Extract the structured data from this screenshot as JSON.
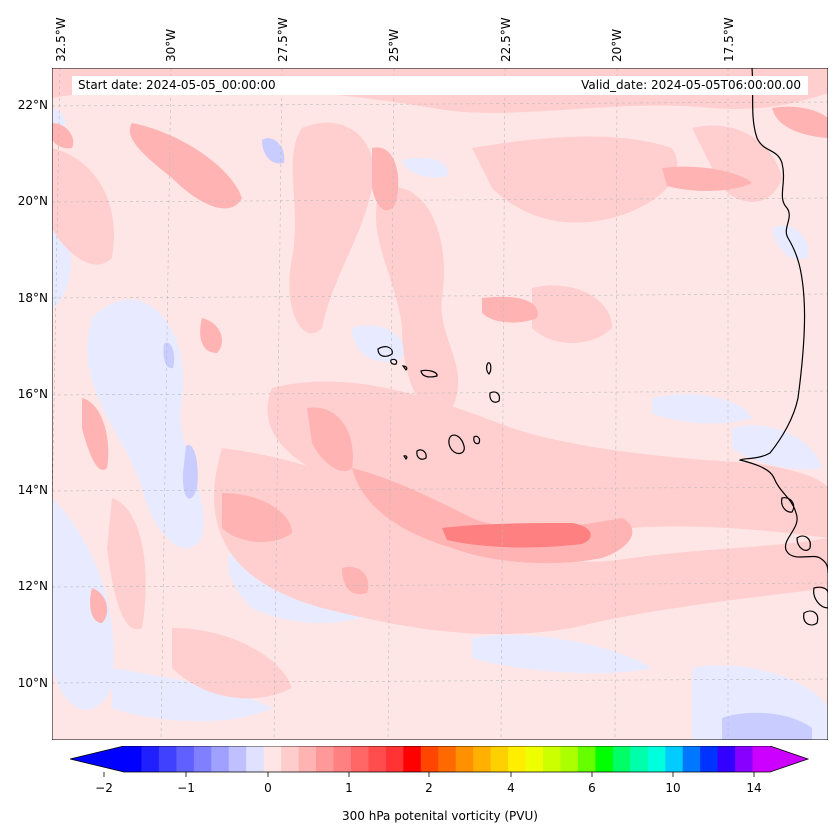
{
  "map": {
    "start_date": "Start date: 2024-05-05_00:00:00",
    "valid_date": "Valid_date: 2024-05-05T06:00:00.00",
    "lon_labels": [
      "32.5°W",
      "30°W",
      "27.5°W",
      "25°W",
      "22.5°W",
      "20°W",
      "17.5°W"
    ],
    "lat_labels": [
      "22°N",
      "20°N",
      "18°N",
      "16°N",
      "14°N",
      "12°N",
      "10°N"
    ],
    "extent": {
      "lon_min": -32.8,
      "lon_max": -15.3,
      "lat_min": 8.8,
      "lat_max": 22.8
    },
    "variable": "300 hPa potential vorticity",
    "units": "PVU"
  },
  "colorbar": {
    "label": "300 hPa potenital vorticity (PVU)",
    "ticks": [
      "−2",
      "−1",
      "0",
      "1",
      "2",
      "4",
      "6",
      "10",
      "14"
    ],
    "colors": [
      "#0000ff",
      "#2020ff",
      "#4040ff",
      "#6060ff",
      "#8080ff",
      "#a0a0ff",
      "#c0c0ff",
      "#e0e0ff",
      "#ffe5e5",
      "#ffcccc",
      "#ffb3b3",
      "#ff9999",
      "#ff8080",
      "#ff6666",
      "#ff4d4d",
      "#ff3333",
      "#ff0000",
      "#ff4500",
      "#ff6a00",
      "#ff9000",
      "#ffb000",
      "#ffd000",
      "#ffee00",
      "#eeff00",
      "#ccff00",
      "#aaff00",
      "#66ff00",
      "#00ff00",
      "#00ff66",
      "#00ffaa",
      "#00ffdd",
      "#00ccff",
      "#0077ff",
      "#0033ff",
      "#3300ff",
      "#8800ff",
      "#cc00ff"
    ],
    "extend_low": "#0000ff",
    "extend_high": "#cc00ff"
  },
  "colors": {
    "background": "#ffe6e6",
    "light_pink": "#ffcfcf",
    "mid_pink": "#ffb3b3",
    "strong_pink": "#ff8080",
    "light_blue": "#e8ebff",
    "mid_blue": "#c8ccff",
    "coast": "#000000",
    "grid": "#bbbbbb"
  }
}
